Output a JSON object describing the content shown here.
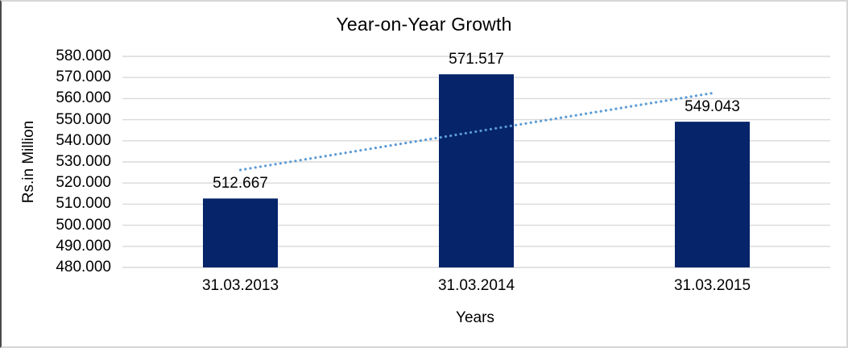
{
  "chart_data": {
    "type": "bar",
    "title": "Year-on-Year Growth",
    "xlabel": "Years",
    "ylabel": "Rs.in Million",
    "categories": [
      "31.03.2013",
      "31.03.2014",
      "31.03.2015"
    ],
    "values": [
      512.667,
      571.517,
      549.043
    ],
    "value_labels": [
      "512.667",
      "571.517",
      "549.043"
    ],
    "ylim": [
      480,
      580
    ],
    "ytick_step": 10,
    "ytick_labels": [
      "580.000",
      "570.000",
      "560.000",
      "550.000",
      "540.000",
      "530.000",
      "520.000",
      "510.000",
      "500.000",
      "490.000",
      "480.000"
    ],
    "grid": "horizontal",
    "legend": "none",
    "trendline": {
      "style": "dotted",
      "start_value": 526.2,
      "end_value": 562.6
    },
    "colors": {
      "bar": "#05246A",
      "gridline": "#D9D9D9",
      "trendline": "#5B9BD5",
      "text": "#000000",
      "frame_border": "#D6D6D6",
      "frame_border_left": "#4A4A4A"
    }
  }
}
